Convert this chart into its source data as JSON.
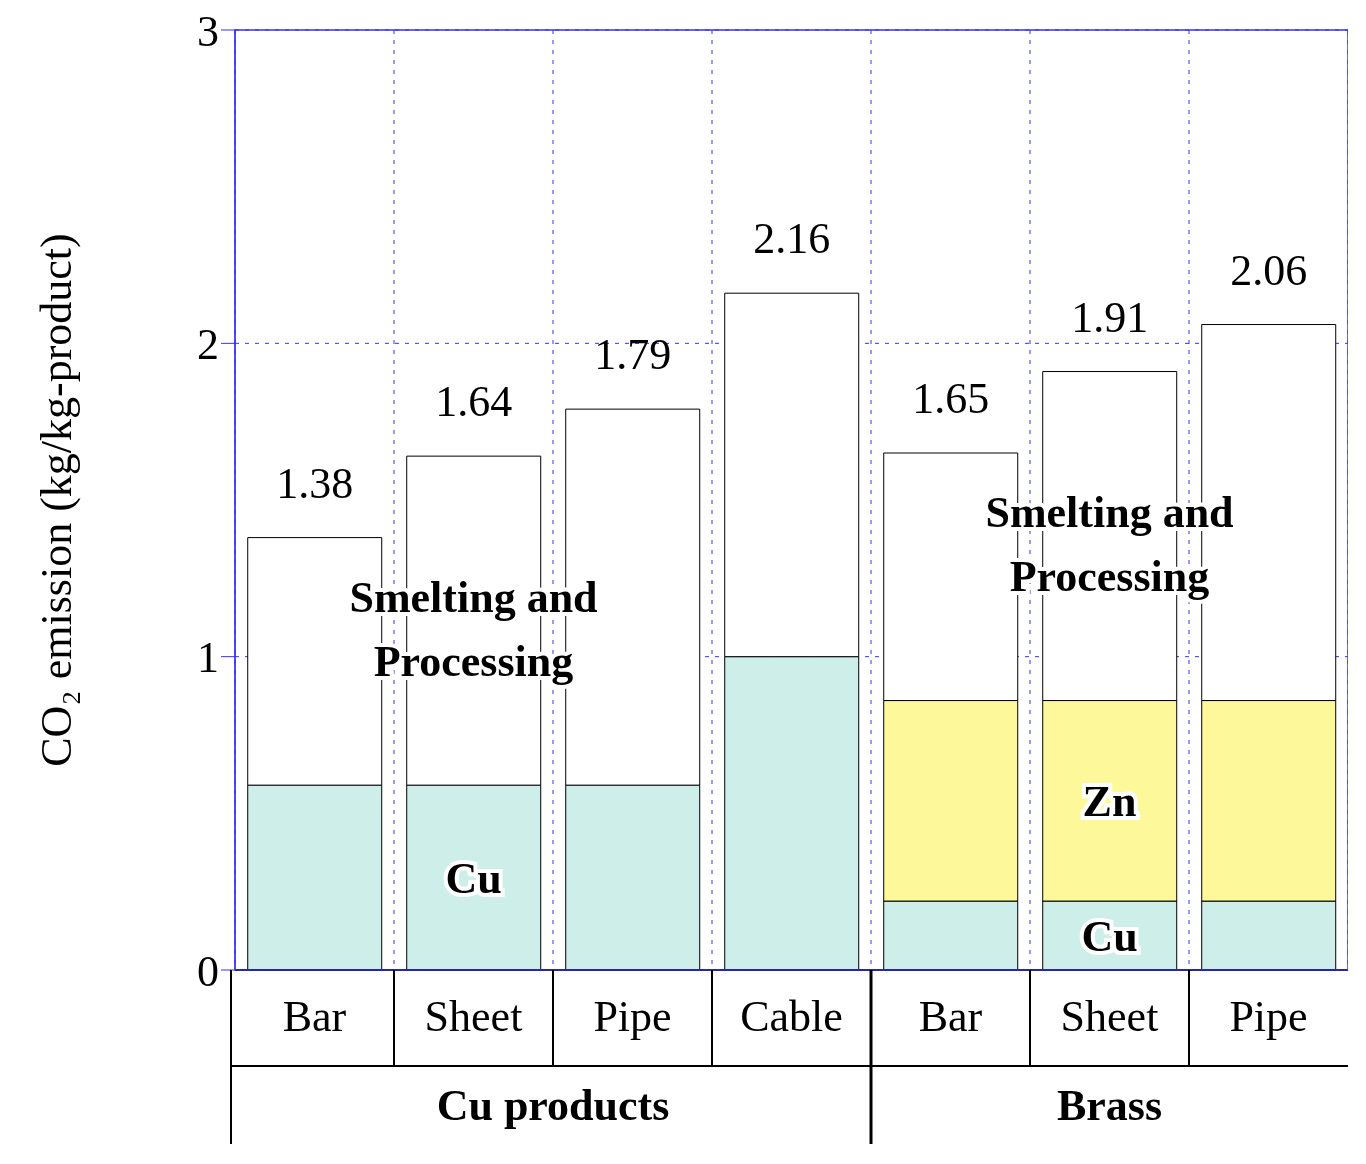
{
  "chart_data": {
    "type": "bar",
    "stacked": true,
    "ylabel": "CO₂ emission (kg/kg-product)",
    "categories": [
      "Bar",
      "Sheet",
      "Pipe",
      "Cable",
      "Bar",
      "Sheet",
      "Pipe"
    ],
    "series": [
      {
        "name": "Cu",
        "color": "#cdeee9",
        "values": [
          0.59,
          0.59,
          0.59,
          1.0,
          0.22,
          0.22,
          0.22
        ]
      },
      {
        "name": "Zn",
        "color": "#fdf89a",
        "values": [
          null,
          null,
          null,
          null,
          0.64,
          0.64,
          0.64
        ]
      },
      {
        "name": "Smelting and Processing",
        "color": "#ffffff",
        "values": [
          0.79,
          1.05,
          1.2,
          1.16,
          0.79,
          1.05,
          1.2
        ]
      }
    ],
    "totals": [
      "1.38",
      "1.64",
      "1.79",
      "2.16",
      "1.65",
      "1.91",
      "2.06"
    ],
    "annotations": [
      "Cu products",
      "Brass"
    ],
    "ylim": [
      0,
      3
    ],
    "yticks": [
      0,
      1,
      2,
      3
    ],
    "grid": true
  }
}
